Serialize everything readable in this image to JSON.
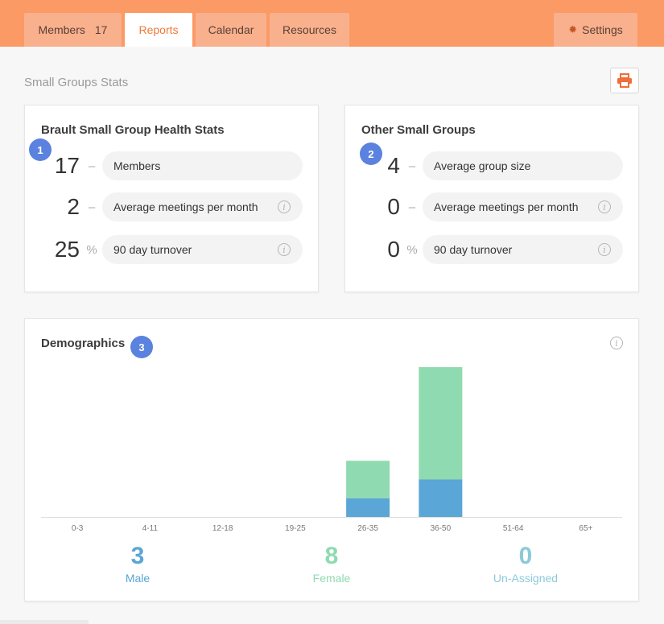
{
  "tabs": [
    {
      "label": "Members",
      "count": "17"
    },
    {
      "label": "Reports"
    },
    {
      "label": "Calendar"
    },
    {
      "label": "Resources"
    },
    {
      "label": "Settings"
    }
  ],
  "section_title": "Small Groups Stats",
  "group_stats": {
    "title": "Brault Small Group Health Stats",
    "badge": "1",
    "rows": [
      {
        "value": "17",
        "unit": "–",
        "label": "Members"
      },
      {
        "value": "2",
        "unit": "–",
        "label": "Average meetings per month"
      },
      {
        "value": "25",
        "unit": "%",
        "label": "90 day turnover"
      }
    ]
  },
  "other_stats": {
    "title": "Other Small Groups",
    "badge": "2",
    "rows": [
      {
        "value": "4",
        "unit": "–",
        "label": "Average group size"
      },
      {
        "value": "0",
        "unit": "–",
        "label": "Average meetings per month"
      },
      {
        "value": "0",
        "unit": "%",
        "label": "90 day turnover"
      }
    ]
  },
  "demographics": {
    "title": "Demographics",
    "badge": "3",
    "totals": [
      {
        "value": "3",
        "label": "Male",
        "color": "#5aa6d6"
      },
      {
        "value": "8",
        "label": "Female",
        "color": "#8fdab0"
      },
      {
        "value": "0",
        "label": "Un-Assigned",
        "color": "#8ccad8"
      }
    ]
  },
  "chart_data": {
    "type": "bar",
    "stacked": true,
    "categories": [
      "0-3",
      "4-11",
      "12-18",
      "19-25",
      "26-35",
      "36-50",
      "51-64",
      "65+"
    ],
    "series": [
      {
        "name": "Male",
        "color": "#5aa6d6",
        "values": [
          0,
          0,
          0,
          0,
          1,
          2,
          0,
          0
        ]
      },
      {
        "name": "Female",
        "color": "#8fdab0",
        "values": [
          0,
          0,
          0,
          0,
          2,
          6,
          0,
          0
        ]
      }
    ],
    "ylim": [
      0,
      8
    ],
    "grid": false,
    "title": "",
    "xlabel": "",
    "ylabel": ""
  },
  "colors": {
    "accent": "#fb9a65",
    "tab_active_text": "#f07a3c",
    "badge": "#5a82de"
  }
}
